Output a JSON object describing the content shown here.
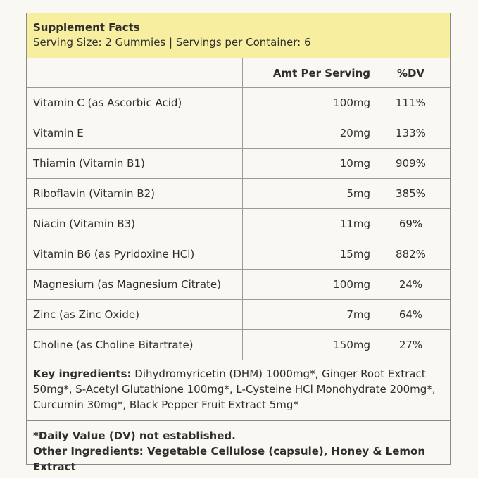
{
  "header": {
    "title": "Supplement Facts",
    "serving": "Serving Size: 2 Gummies | Servings per Container: 6"
  },
  "table": {
    "columns": [
      "",
      "Amt Per Serving",
      "%DV"
    ],
    "rows": [
      {
        "name": "Vitamin C (as Ascorbic Acid)",
        "amount": "100mg",
        "dv": "111%"
      },
      {
        "name": "Vitamin E",
        "amount": "20mg",
        "dv": "133%"
      },
      {
        "name": "Thiamin (Vitamin B1)",
        "amount": "10mg",
        "dv": "909%"
      },
      {
        "name": "Riboflavin (Vitamin B2)",
        "amount": "5mg",
        "dv": "385%"
      },
      {
        "name": "Niacin (Vitamin B3)",
        "amount": "11mg",
        "dv": "69%"
      },
      {
        "name": "Vitamin B6 (as Pyridoxine HCl)",
        "amount": "15mg",
        "dv": "882%"
      },
      {
        "name": "Magnesium (as Magnesium Citrate)",
        "amount": "100mg",
        "dv": "24%"
      },
      {
        "name": "Zinc (as Zinc Oxide)",
        "amount": "7mg",
        "dv": "64%"
      },
      {
        "name": "Choline (as Choline Bitartrate)",
        "amount": "150mg",
        "dv": "27%"
      }
    ]
  },
  "key_ingredients": {
    "label": "Key ingredients:",
    "text": " Dihydromyricetin (DHM) 1000mg*, Ginger Root Extract 50mg*, S-Acetyl Glutathione 100mg*, L-Cysteine HCl Monohydrate 200mg*, Curcumin 30mg*, Black Pepper Fruit Extract 5mg*"
  },
  "footer": {
    "daily_value_note": "*Daily Value (DV) not established.",
    "other_ingredients": "Other Ingredients: Vegetable Cellulose (capsule), Honey & Lemon Extract"
  },
  "colors": {
    "header_bg": "#f7ee9f",
    "page_bg": "#faf8f3",
    "border": "#8a8a8a"
  }
}
